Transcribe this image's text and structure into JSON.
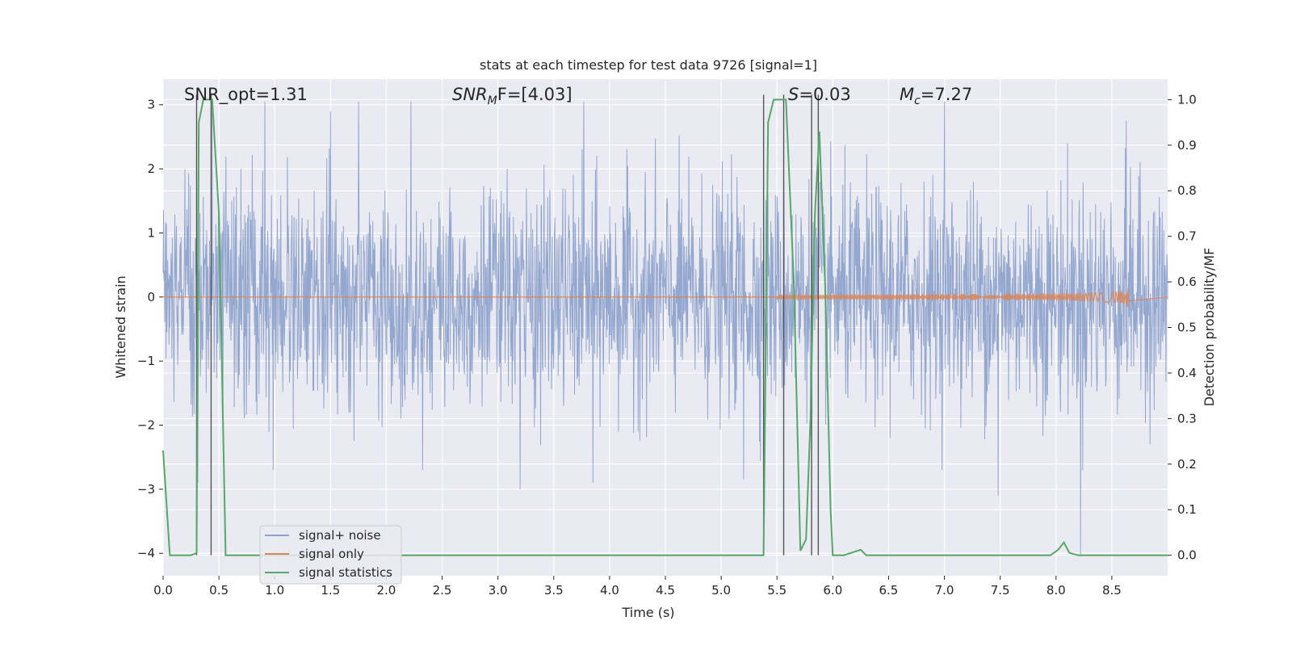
{
  "chart_data": {
    "type": "line",
    "title": "stats at each timestep for test data 9726 [signal=1]",
    "xlabel": "Time (s)",
    "ylabel_left": "Whitened strain",
    "ylabel_right": "Detection probability/MF",
    "xlim": [
      0.0,
      9.0
    ],
    "ylim_left": [
      -4.35,
      3.4
    ],
    "ylim_right": [
      -0.045,
      1.045
    ],
    "x_ticks": [
      "0.0",
      "0.5",
      "1.0",
      "1.5",
      "2.0",
      "2.5",
      "3.0",
      "3.5",
      "4.0",
      "4.5",
      "5.0",
      "5.5",
      "6.0",
      "6.5",
      "7.0",
      "7.5",
      "8.0",
      "8.5"
    ],
    "y_left_ticks": [
      "3",
      "2",
      "1",
      "0",
      "−1",
      "−2",
      "−3",
      "−4"
    ],
    "y_right_ticks": [
      "1.0",
      "0.9",
      "0.8",
      "0.7",
      "0.6",
      "0.5",
      "0.4",
      "0.3",
      "0.2",
      "0.1",
      "0.0"
    ],
    "annotations": {
      "snr_opt": "SNR_opt=1.31",
      "snr_mf_main": "SNR",
      "snr_mf_sub": "M",
      "snr_mf_rest": "F=[4.03]",
      "s_main": "S",
      "s_rest": "=0.03",
      "mc_main": "M",
      "mc_sub": "c",
      "mc_rest": "=7.27"
    },
    "grid": true,
    "legend_position": "lower-left",
    "colors": {
      "noise": "#8fa3cc",
      "signal": "#dd8452",
      "stats": "#55a868",
      "markers": "#555555",
      "background": "#eaeaf2"
    },
    "series": [
      {
        "name": "signal+ noise",
        "amplitude_envelope": [
          1.6,
          2.0
        ],
        "peaks": [
          {
            "x": 0.31,
            "y": -2.9
          },
          {
            "x": 0.44,
            "y": 3.0
          },
          {
            "x": 0.91,
            "y": 3.05
          },
          {
            "x": 1.5,
            "y": 2.9
          },
          {
            "x": 1.75,
            "y": 3.05
          },
          {
            "x": 2.22,
            "y": 3.05
          },
          {
            "x": 3.2,
            "y": -3.0
          },
          {
            "x": 3.77,
            "y": 3.05
          },
          {
            "x": 3.85,
            "y": -2.9
          },
          {
            "x": 5.2,
            "y": -2.85
          },
          {
            "x": 7.0,
            "y": 3.05
          },
          {
            "x": 7.48,
            "y": -3.1
          },
          {
            "x": 8.22,
            "y": -4.05
          },
          {
            "x": 8.63,
            "y": 2.75
          }
        ]
      },
      {
        "name": "signal only",
        "chirp_end": 8.65,
        "final_amplitude": 0.25
      },
      {
        "name": "signal statistics",
        "x": [
          0.0,
          0.06,
          0.12,
          0.25,
          0.3,
          0.32,
          0.36,
          0.4,
          0.44,
          0.5,
          0.56,
          0.62,
          1.0,
          5.0,
          5.38,
          5.42,
          5.47,
          5.52,
          5.58,
          5.65,
          5.71,
          5.76,
          5.8,
          5.84,
          5.88,
          5.93,
          5.98,
          6.0,
          6.1,
          6.25,
          6.3,
          7.0,
          7.95,
          8.02,
          8.07,
          8.12,
          8.2,
          9.0
        ],
        "y": [
          0.23,
          0.0,
          0.0,
          0.0,
          0.005,
          0.95,
          1.0,
          1.0,
          1.0,
          0.75,
          0.0,
          0.0,
          0.0,
          0.0,
          0.0,
          0.95,
          1.0,
          1.0,
          1.0,
          0.6,
          0.01,
          0.035,
          0.3,
          0.75,
          0.93,
          0.6,
          0.1,
          0.0,
          0.0,
          0.012,
          0.0,
          0.0,
          0.0,
          0.012,
          0.028,
          0.005,
          0.0,
          0.0
        ]
      }
    ],
    "vertical_markers": [
      0.3,
      0.43,
      5.38,
      5.56,
      5.81,
      5.87
    ],
    "legend": [
      "signal+ noise",
      "signal only",
      "signal statistics"
    ]
  }
}
